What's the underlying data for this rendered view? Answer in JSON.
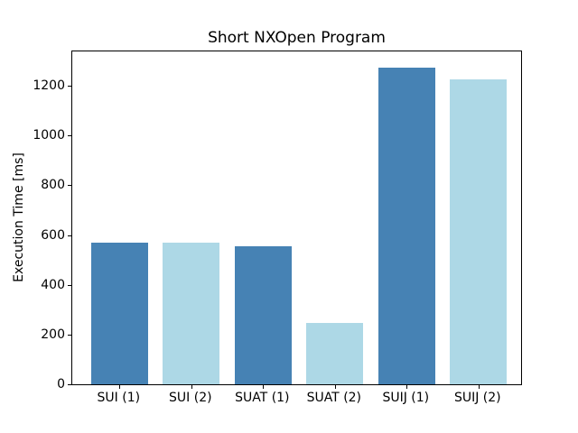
{
  "chart_data": {
    "type": "bar",
    "title": "Short NXOpen Program",
    "xlabel": "",
    "ylabel": "Execution Time [ms]",
    "categories": [
      "SUI (1)",
      "SUI (2)",
      "SUAT (1)",
      "SUAT (2)",
      "SUIJ (1)",
      "SUIJ (2)"
    ],
    "values": [
      569,
      569,
      555,
      246,
      1274,
      1225
    ],
    "bar_colors": [
      "#4682b4",
      "#add8e6",
      "#4682b4",
      "#add8e6",
      "#4682b4",
      "#add8e6"
    ],
    "yticks": [
      0,
      200,
      400,
      600,
      800,
      1000,
      1200
    ],
    "ylim": [
      0,
      1338
    ],
    "grid": false,
    "legend": null,
    "colors": {
      "bar_dark": "#4682b4",
      "bar_light": "#add8e6",
      "spine": "#000000",
      "background": "#ffffff"
    }
  }
}
